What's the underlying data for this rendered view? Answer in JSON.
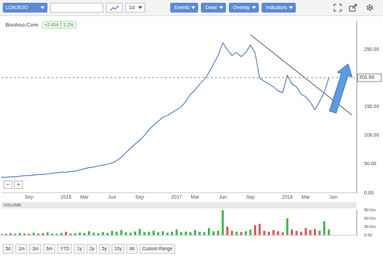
{
  "toolbar": {
    "symbol": "LON:BOO",
    "interval": "1d",
    "menus": [
      "Events",
      "Draw",
      "Overlay",
      "Indicators"
    ]
  },
  "zoom_buttons": [
    "−",
    "+"
  ],
  "range_buttons": [
    "5d",
    "1m",
    "3m",
    "6m",
    "YTD",
    "1y",
    "2y",
    "5y",
    "10y",
    "All",
    "Custom Range"
  ],
  "chart_data": [
    {
      "type": "line",
      "title": "Boohoo.Com",
      "change": "+2.404",
      "change_pct": "1.2%",
      "categories": [
        null,
        null,
        null,
        null,
        null,
        null,
        "Sep",
        null,
        null,
        null,
        null,
        null,
        null,
        null,
        "2016",
        null,
        null,
        null,
        "Mar",
        null,
        null,
        null,
        null,
        null,
        "Jun",
        null,
        null,
        null,
        null,
        null,
        "Sep",
        null,
        null,
        null,
        null,
        null,
        null,
        null,
        "2017",
        null,
        null,
        null,
        "Mar",
        null,
        null,
        null,
        null,
        null,
        "Jun",
        null,
        null,
        null,
        null,
        null,
        "Sep",
        null,
        null,
        null,
        null,
        null,
        null,
        null,
        "2018",
        null,
        null,
        null,
        "Mar",
        null,
        null,
        null,
        null,
        null,
        "Jun",
        null,
        null,
        null,
        null,
        null
      ],
      "values": [
        27,
        27,
        28,
        28,
        29,
        30,
        30,
        31,
        32,
        32,
        33,
        34,
        35,
        36,
        36,
        37,
        38,
        40,
        42,
        44,
        45,
        47,
        48,
        50,
        52,
        56,
        62,
        70,
        78,
        85,
        92,
        100,
        110,
        118,
        125,
        132,
        135,
        140,
        145,
        150,
        160,
        172,
        180,
        190,
        198,
        210,
        225,
        240,
        262,
        250,
        240,
        245,
        238,
        245,
        258,
        245,
        200,
        195,
        190,
        185,
        178,
        175,
        205,
        190,
        185,
        172,
        168,
        158,
        145,
        160,
        175,
        201,
        null,
        null,
        null,
        null,
        null,
        null
      ],
      "color": "#4f7fc7",
      "trend_values": [
        null,
        null,
        null,
        null,
        null,
        null,
        null,
        null,
        null,
        null,
        null,
        null,
        null,
        null,
        null,
        null,
        null,
        null,
        null,
        null,
        null,
        null,
        null,
        null,
        null,
        null,
        null,
        null,
        null,
        null,
        null,
        null,
        null,
        null,
        null,
        null,
        null,
        null,
        null,
        null,
        null,
        null,
        null,
        null,
        null,
        null,
        null,
        null,
        null,
        null,
        null,
        null,
        null,
        null,
        276,
        null,
        null,
        null,
        null,
        null,
        null,
        null,
        null,
        null,
        null,
        null,
        null,
        null,
        null,
        null,
        null,
        null,
        null,
        null,
        null,
        null,
        136,
        null
      ],
      "trend_color": "#333333",
      "price_line": {
        "value": 201,
        "label": "201.00"
      },
      "ylim": [
        0,
        300
      ],
      "yticks": [
        {
          "value": 0,
          "label": "0.00"
        },
        {
          "value": 50,
          "label": "50.00"
        },
        {
          "value": 100,
          "label": "100.00"
        },
        {
          "value": 150,
          "label": "150.00"
        },
        {
          "value": 250,
          "label": "250.00"
        }
      ],
      "grid": false
    },
    {
      "type": "bar",
      "title": "VOLUME",
      "categories": [
        null,
        null,
        null,
        null,
        null,
        null,
        null,
        null,
        null,
        null,
        null,
        null,
        null,
        null,
        null,
        null,
        null,
        null,
        null,
        null,
        null,
        null,
        null,
        null,
        null,
        null,
        null,
        null,
        null,
        null,
        null,
        null,
        null,
        null,
        null,
        null,
        null,
        null,
        null,
        null,
        null,
        null,
        null,
        null,
        null,
        null,
        null,
        null,
        null,
        null,
        null,
        null,
        null,
        null,
        null,
        null,
        null,
        null,
        null,
        null,
        null,
        null,
        null,
        null,
        null,
        null,
        null,
        null,
        null,
        null,
        null,
        null,
        null,
        null,
        null,
        null,
        null,
        null
      ],
      "values": [
        6000000,
        5000000,
        7000000,
        5000000,
        8000000,
        6000000,
        5000000,
        9000000,
        6000000,
        7000000,
        10000000,
        6000000,
        5000000,
        8000000,
        12000000,
        6000000,
        7000000,
        9000000,
        8000000,
        14000000,
        9000000,
        7000000,
        11000000,
        8000000,
        15000000,
        12000000,
        18000000,
        10000000,
        9000000,
        13000000,
        22000000,
        11000000,
        12000000,
        16000000,
        10000000,
        14000000,
        9000000,
        12000000,
        20000000,
        11000000,
        13000000,
        10000000,
        18000000,
        12000000,
        10000000,
        25000000,
        14000000,
        16000000,
        88000000,
        30000000,
        15000000,
        12000000,
        11000000,
        14000000,
        20000000,
        35000000,
        40000000,
        15000000,
        12000000,
        18000000,
        14000000,
        10000000,
        60000000,
        20000000,
        15000000,
        12000000,
        25000000,
        18000000,
        22000000,
        16000000,
        50000000,
        20000000,
        null,
        null,
        null,
        null,
        null,
        null
      ],
      "colors": [
        "#3bb54a",
        "#d9534f",
        "#3bb54a",
        "#d9534f",
        "#3bb54a",
        "#3bb54a",
        "#d9534f",
        "#3bb54a",
        "#3bb54a",
        "#d9534f",
        "#3bb54a",
        "#3bb54a",
        "#3bb54a",
        "#3bb54a",
        "#d9534f",
        "#3bb54a",
        "#3bb54a",
        "#3bb54a",
        "#3bb54a",
        "#3bb54a",
        "#3bb54a",
        "#3bb54a",
        "#3bb54a",
        "#3bb54a",
        "#3bb54a",
        "#3bb54a",
        "#3bb54a",
        "#3bb54a",
        "#3bb54a",
        "#3bb54a",
        "#3bb54a",
        "#3bb54a",
        "#3bb54a",
        "#3bb54a",
        "#3bb54a",
        "#3bb54a",
        "#3bb54a",
        "#3bb54a",
        "#3bb54a",
        "#3bb54a",
        "#3bb54a",
        "#3bb54a",
        "#3bb54a",
        "#3bb54a",
        "#3bb54a",
        "#3bb54a",
        "#3bb54a",
        "#3bb54a",
        "#3bb54a",
        "#d9534f",
        "#d9534f",
        "#3bb54a",
        "#d9534f",
        "#3bb54a",
        "#3bb54a",
        "#d9534f",
        "#d9534f",
        "#d9534f",
        "#d9534f",
        "#d9534f",
        "#d9534f",
        "#d9534f",
        "#3bb54a",
        "#d9534f",
        "#d9534f",
        "#d9534f",
        "#d9534f",
        "#d9534f",
        "#d9534f",
        "#3bb54a",
        "#3bb54a",
        "#3bb54a",
        null,
        null,
        null,
        null,
        null,
        null
      ],
      "ylim": [
        0,
        90000000
      ],
      "yticks": [
        {
          "value": 0,
          "label": "0.00"
        },
        {
          "value": 30000000,
          "label": "30.0m"
        },
        {
          "value": 60000000,
          "label": "60.0m"
        },
        {
          "value": 90000000,
          "label": "90.0m"
        }
      ],
      "grid": false,
      "tick_labels": "y"
    }
  ]
}
